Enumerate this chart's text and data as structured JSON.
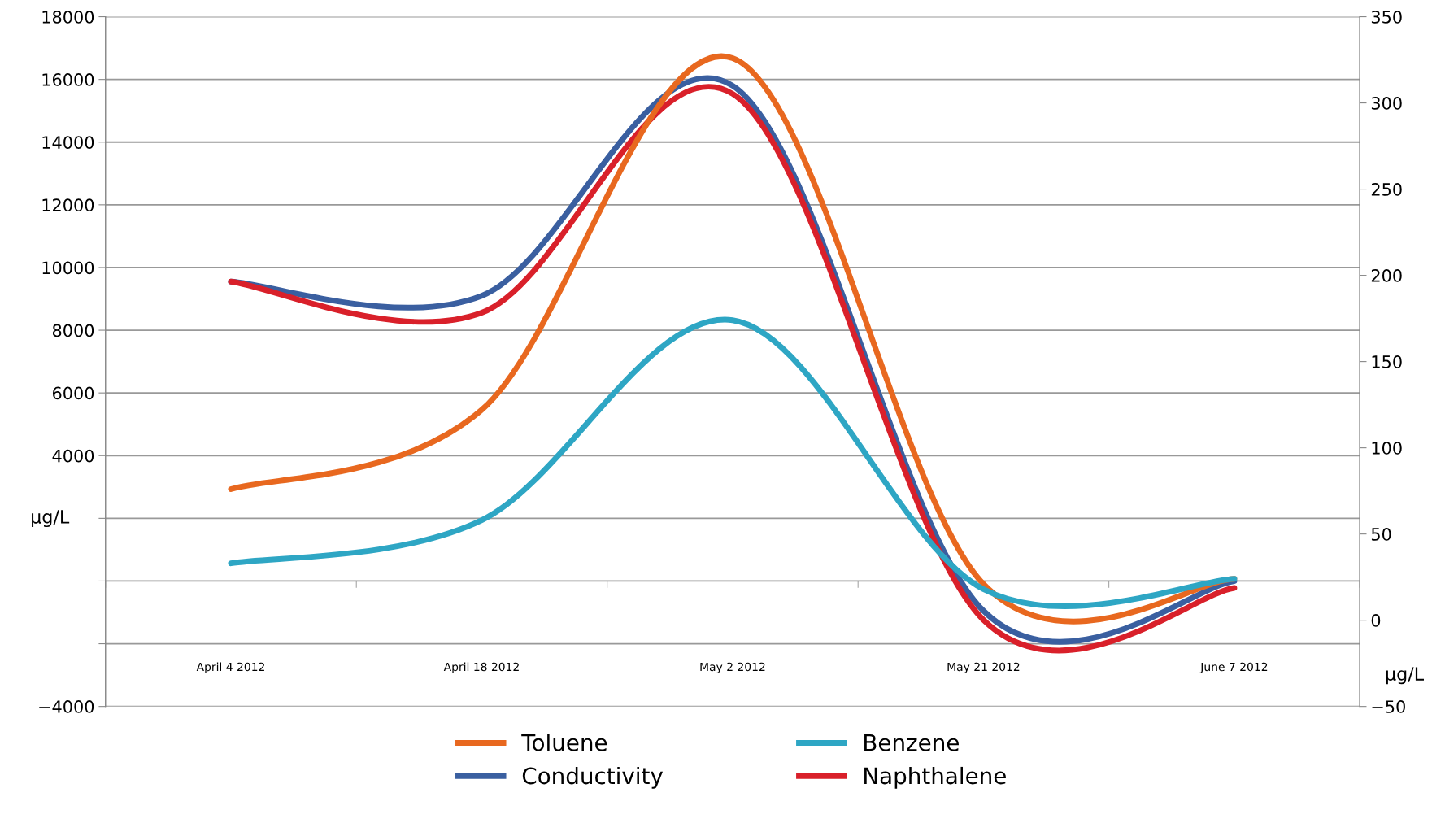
{
  "chart_data": {
    "type": "line",
    "ylabel": "μg/L",
    "y2label": "μg/L",
    "categories": [
      "April 4 2012",
      "April 18 2012",
      "May 2 2012",
      "May 21 2012",
      "June 7 2012"
    ],
    "series": [
      {
        "name": "Toluene",
        "color": "#e8681f",
        "axis": "y2",
        "values": [
          76,
          122,
          326,
          21,
          24
        ]
      },
      {
        "name": "Benzene",
        "color": "#2ea6c4",
        "axis": "y2",
        "values": [
          33,
          58,
          174,
          18,
          24
        ]
      },
      {
        "name": "Conductivity",
        "color": "#3a5fa0",
        "values": [
          9550,
          9100,
          15800,
          -950,
          0
        ]
      },
      {
        "name": "Naphthalene",
        "color": "#d9202a",
        "values": [
          9550,
          8560,
          15540,
          -1240,
          -220
        ]
      }
    ],
    "ylim": [
      -4000,
      18000
    ],
    "yticks": [
      -4000,
      {
        "value": -2000,
        "label": null
      },
      {
        "value": 0,
        "label": null
      },
      {
        "value": 2000,
        "label": null
      },
      4000,
      6000,
      8000,
      10000,
      12000,
      14000,
      16000,
      18000
    ],
    "y2lim": [
      -50,
      350
    ],
    "y2ticks": [
      -50,
      0,
      50,
      100,
      150,
      200,
      250,
      300,
      350
    ],
    "grid": "y",
    "legend": "bottom",
    "marker": "none",
    "line_style": "solid"
  }
}
